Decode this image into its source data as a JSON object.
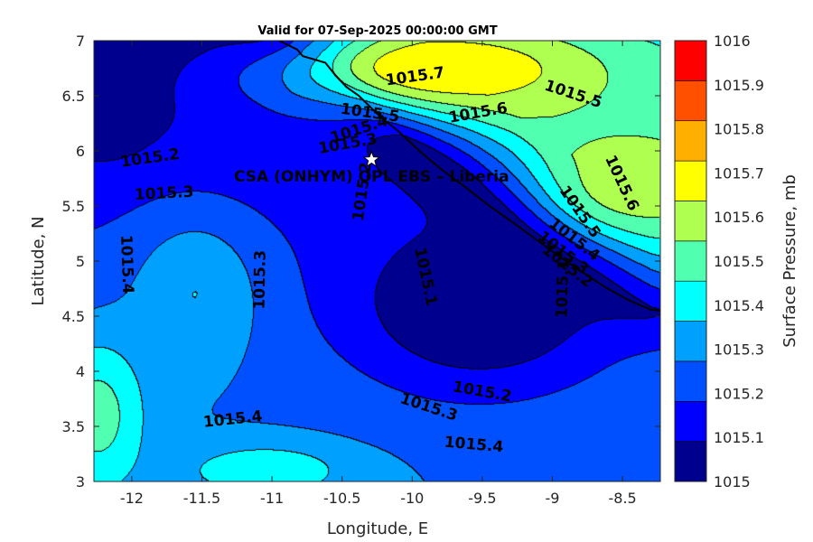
{
  "chart_data": {
    "type": "heatmap",
    "subtype": "filled-contour-map",
    "title": "Valid for 07-Sep-2025 00:00:00 GMT",
    "xlabel": "Longitude, E",
    "ylabel": "Latitude, N",
    "xlim": [
      -12.27,
      -8.23
    ],
    "ylim": [
      3,
      7
    ],
    "x_ticks": [
      -12,
      -11.5,
      -11,
      -10.5,
      -10,
      -9.5,
      -9,
      -8.5
    ],
    "x_tick_labels": [
      "-12",
      "-11.5",
      "-11",
      "-10.5",
      "-10",
      "-9.5",
      "-9",
      "-8.5"
    ],
    "y_ticks": [
      3,
      3.5,
      4,
      4.5,
      5,
      5.5,
      6,
      6.5,
      7
    ],
    "y_tick_labels": [
      "3",
      "3.5",
      "4",
      "4.5",
      "5",
      "5.5",
      "6",
      "6.5",
      "7"
    ],
    "colorbar": {
      "label": "Surface Pressure, mb",
      "levels": [
        1015,
        1015.1,
        1015.2,
        1015.3,
        1015.4,
        1015.5,
        1015.6,
        1015.7,
        1015.8,
        1015.9,
        1016
      ],
      "tick_labels": [
        "1015",
        "1015.1",
        "1015.2",
        "1015.3",
        "1015.4",
        "1015.5",
        "1015.6",
        "1015.7",
        "1015.8",
        "1015.9",
        "1016"
      ],
      "colors": [
        "#00008f",
        "#0000ff",
        "#0050ff",
        "#00a0ff",
        "#00ffff",
        "#50ffaf",
        "#afff50",
        "#ffff00",
        "#ffaf00",
        "#ff5000",
        "#ff0000"
      ]
    },
    "field_centers": [
      {
        "lon": -12.2,
        "lat": 6.4,
        "value": 1015.02,
        "extent_lon": 0.35,
        "extent_lat": 0.45
      },
      {
        "lon": -9.52,
        "lat": 4.6,
        "value": 1014.98,
        "extent_lon": 0.95,
        "extent_lat": 0.8
      },
      {
        "lon": -9.8,
        "lat": 6.75,
        "value": 1015.8,
        "extent_lon": 1.2,
        "extent_lat": 0.45
      },
      {
        "lon": -8.45,
        "lat": 5.7,
        "value": 1015.66,
        "extent_lon": 0.55,
        "extent_lat": 0.45
      },
      {
        "lon": -11.55,
        "lat": 4.7,
        "value": 1015.4,
        "extent_lon": 0.45,
        "extent_lat": 0.7
      },
      {
        "lon": -12.25,
        "lat": 3.6,
        "value": 1015.55,
        "extent_lon": 0.35,
        "extent_lat": 0.7
      },
      {
        "lon": -11.05,
        "lat": 3.1,
        "value": 1015.48,
        "extent_lon": 0.6,
        "extent_lat": 0.25
      }
    ],
    "contour_labels": [
      {
        "text": "1015.7",
        "lon": -9.98,
        "lat": 6.68,
        "angle": -8
      },
      {
        "text": "1015.5",
        "lon": -10.3,
        "lat": 6.35,
        "angle": 8
      },
      {
        "text": "1015.6",
        "lon": -9.53,
        "lat": 6.35,
        "angle": -10
      },
      {
        "text": "1015.5",
        "lon": -8.85,
        "lat": 6.52,
        "angle": 18
      },
      {
        "text": "1015.4",
        "lon": -10.38,
        "lat": 6.2,
        "angle": -18
      },
      {
        "text": "1015.3",
        "lon": -10.46,
        "lat": 6.07,
        "angle": -10
      },
      {
        "text": "1015.2",
        "lon": -11.87,
        "lat": 5.94,
        "angle": -8
      },
      {
        "text": "1015.3",
        "lon": -11.77,
        "lat": 5.62,
        "angle": -3
      },
      {
        "text": "1015.4",
        "lon": -12.03,
        "lat": 4.97,
        "angle": 88
      },
      {
        "text": "1015.3",
        "lon": -11.09,
        "lat": 4.83,
        "angle": -89
      },
      {
        "text": "1015.2",
        "lon": -10.36,
        "lat": 5.63,
        "angle": -82
      },
      {
        "text": "1015.1",
        "lon": -9.9,
        "lat": 4.86,
        "angle": 78
      },
      {
        "text": "1015.1",
        "lon": -8.93,
        "lat": 4.75,
        "angle": -88
      },
      {
        "text": "1015.6",
        "lon": -8.5,
        "lat": 5.71,
        "angle": 65
      },
      {
        "text": "1015.5",
        "lon": -8.8,
        "lat": 5.45,
        "angle": 55
      },
      {
        "text": "1015.4",
        "lon": -8.84,
        "lat": 5.2,
        "angle": 38
      },
      {
        "text": "1015.3",
        "lon": -8.92,
        "lat": 5.08,
        "angle": 38
      },
      {
        "text": "1015.2",
        "lon": -8.89,
        "lat": 4.96,
        "angle": 38
      },
      {
        "text": "1015.2",
        "lon": -9.5,
        "lat": 3.82,
        "angle": 10
      },
      {
        "text": "1015.3",
        "lon": -9.88,
        "lat": 3.68,
        "angle": 18
      },
      {
        "text": "1015.4",
        "lon": -9.56,
        "lat": 3.34,
        "angle": 5
      },
      {
        "text": "1015.4",
        "lon": -11.28,
        "lat": 3.57,
        "angle": -6
      }
    ],
    "coastline": [
      [
        -10.95,
        7.0
      ],
      [
        -10.82,
        6.92
      ],
      [
        -10.78,
        6.86
      ],
      [
        -10.62,
        6.8
      ],
      [
        -10.55,
        6.69
      ],
      [
        -10.47,
        6.58
      ],
      [
        -10.38,
        6.5
      ],
      [
        -10.3,
        6.4
      ],
      [
        -10.22,
        6.3
      ],
      [
        -10.1,
        6.18
      ],
      [
        -9.95,
        6.0
      ],
      [
        -9.8,
        5.84
      ],
      [
        -9.62,
        5.67
      ],
      [
        -9.45,
        5.5
      ],
      [
        -9.28,
        5.35
      ],
      [
        -9.1,
        5.18
      ],
      [
        -8.95,
        5.04
      ],
      [
        -8.8,
        4.91
      ],
      [
        -8.62,
        4.76
      ],
      [
        -8.45,
        4.64
      ],
      [
        -8.3,
        4.56
      ],
      [
        -8.23,
        4.55
      ]
    ],
    "site": {
      "name": "CSA (ONHYM) OPL EBS  – Liberia",
      "lon": -10.29,
      "lat": 5.92,
      "marker": "star"
    }
  }
}
